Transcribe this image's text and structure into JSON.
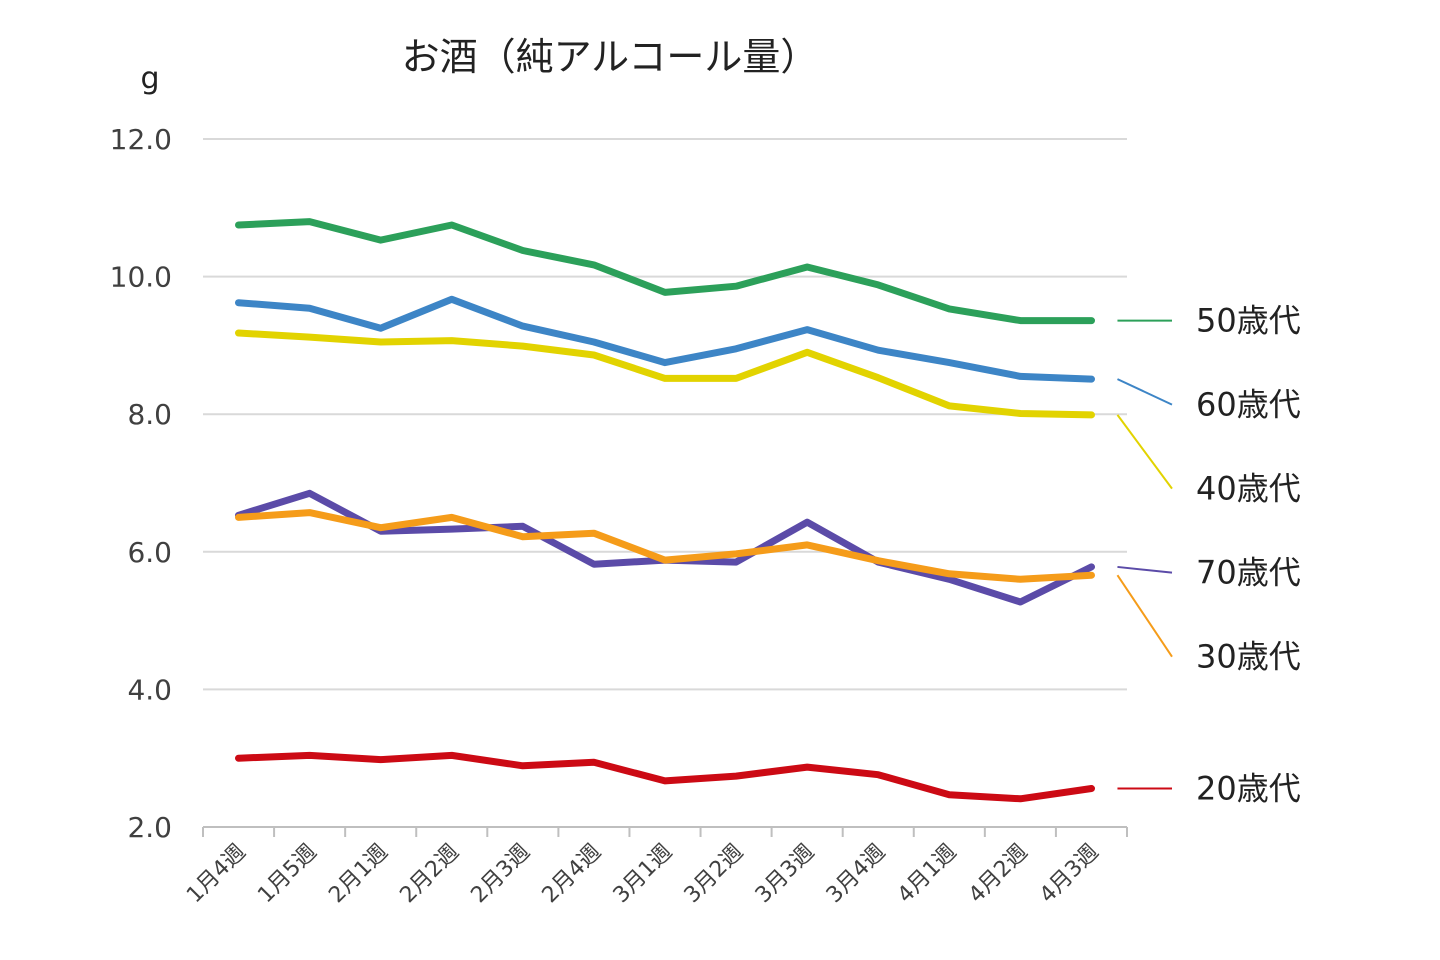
{
  "chart_data": {
    "type": "line",
    "title": "お酒（純アルコール量）",
    "ylabel": "g",
    "xlabel": "",
    "ylim": [
      2.0,
      12.0
    ],
    "yticks": [
      "2.0",
      "4.0",
      "6.0",
      "8.0",
      "10.0",
      "12.0"
    ],
    "grid": true,
    "legend": "right",
    "categories": [
      "1月4週",
      "1月5週",
      "2月1週",
      "2月2週",
      "2月3週",
      "2月4週",
      "3月1週",
      "3月2週",
      "3月3週",
      "3月4週",
      "4月1週",
      "4月2週",
      "4月3週"
    ],
    "series": [
      {
        "name": "50歳代",
        "color": "#2ca05a",
        "values": [
          10.75,
          10.8,
          10.53,
          10.75,
          10.38,
          10.17,
          9.77,
          9.86,
          10.14,
          9.88,
          9.53,
          9.36,
          9.36
        ]
      },
      {
        "name": "60歳代",
        "color": "#3d85c6",
        "values": [
          9.62,
          9.54,
          9.25,
          9.67,
          9.28,
          9.05,
          8.75,
          8.95,
          9.23,
          8.93,
          8.75,
          8.55,
          8.51
        ]
      },
      {
        "name": "40歳代",
        "color": "#e2d300",
        "values": [
          9.18,
          9.12,
          9.05,
          9.07,
          8.99,
          8.86,
          8.52,
          8.52,
          8.9,
          8.53,
          8.12,
          8.01,
          7.99
        ]
      },
      {
        "name": "70歳代",
        "color": "#5b4ba8",
        "values": [
          6.53,
          6.85,
          6.3,
          6.33,
          6.37,
          5.82,
          5.88,
          5.85,
          6.43,
          5.85,
          5.6,
          5.27,
          5.78
        ]
      },
      {
        "name": "30歳代",
        "color": "#f59c1a",
        "values": [
          6.5,
          6.57,
          6.35,
          6.5,
          6.22,
          6.27,
          5.88,
          5.97,
          6.1,
          5.87,
          5.68,
          5.6,
          5.66
        ]
      },
      {
        "name": "20歳代",
        "color": "#cc0a14",
        "values": [
          3.0,
          3.04,
          2.98,
          3.04,
          2.89,
          2.94,
          2.67,
          2.74,
          2.87,
          2.76,
          2.47,
          2.41,
          2.56
        ]
      }
    ]
  }
}
